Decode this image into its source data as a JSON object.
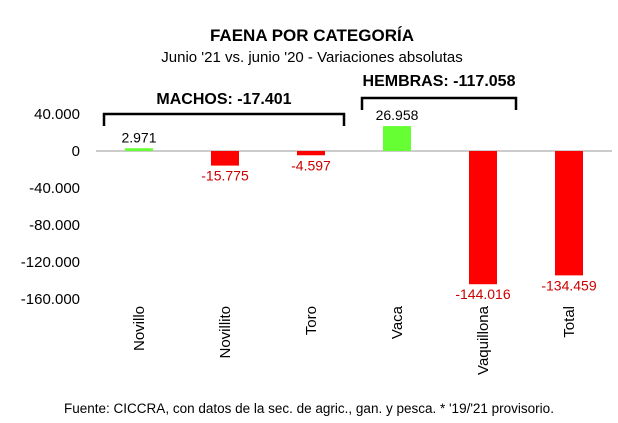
{
  "chart_data": {
    "type": "bar",
    "title": "FAENA POR CATEGORÍA",
    "subtitle": "Junio '21 vs. junio '20 - Variaciones absolutas",
    "categories": [
      "Novillo",
      "Novillito",
      "Toro",
      "Vaca",
      "Vaquillona",
      "Total"
    ],
    "values": [
      2971,
      -15775,
      -4597,
      26958,
      -144016,
      -134459
    ],
    "value_labels": [
      "2.971",
      "-15.775",
      "-4.597",
      "26.958",
      "-144.016",
      "-134.459"
    ],
    "ylim": [
      -160000,
      40000
    ],
    "yticks": [
      40000,
      0,
      -40000,
      -80000,
      -120000,
      -160000
    ],
    "ytick_labels": [
      "40.000",
      "0",
      "-40.000",
      "-80.000",
      "-120.000",
      "-160.000"
    ],
    "grid": false,
    "groups": [
      {
        "label": "MACHOS: -17.401",
        "from": 0,
        "to": 2
      },
      {
        "label": "HEMBRAS: -117.058",
        "from": 3,
        "to": 4
      }
    ],
    "colors": {
      "positive": "#66ff33",
      "negative": "#ff0000",
      "negative_label": "#cc0000",
      "positive_label": "#000000"
    }
  },
  "footnote": "Fuente: CICCRA, con datos de la sec. de agric., gan. y pesca. * '19/'21 provisorio."
}
